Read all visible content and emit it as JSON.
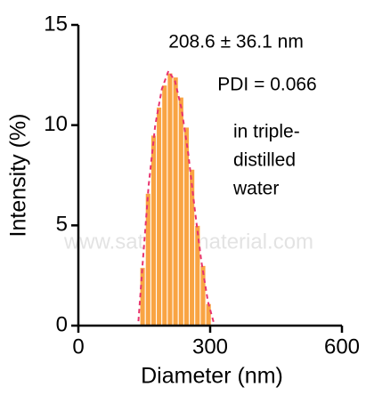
{
  "chart_data": {
    "type": "histogram",
    "xlabel": "Diameter (nm)",
    "ylabel": "Intensity (%)",
    "xlim": [
      0,
      600
    ],
    "xticks": [
      0,
      300,
      600
    ],
    "ylim": [
      0,
      15
    ],
    "yticks": [
      0,
      5,
      10,
      15
    ],
    "bins": [
      140,
      152.5,
      165,
      177.5,
      190,
      202.5,
      215,
      227.5,
      240,
      252.5,
      265,
      277.5,
      290,
      302.5
    ],
    "values": [
      2.9,
      6.6,
      9.5,
      10.9,
      12.0,
      12.6,
      12.4,
      11.4,
      9.9,
      7.8,
      5.0,
      3.0,
      1.1
    ],
    "color": "#f9a443",
    "fit": {
      "color": "#e8336e",
      "x": [
        0,
        136,
        146,
        160,
        175,
        190,
        205,
        220,
        235,
        250,
        265,
        280,
        295,
        310,
        500
      ],
      "y": [
        0,
        0,
        3,
        7,
        10,
        11.8,
        12.7,
        12.2,
        10.8,
        8.6,
        5.8,
        3.2,
        1.2,
        0,
        0
      ]
    },
    "annotations": [
      "208.6 ± 36.1 nm",
      "PDI = 0.066",
      "in triple-",
      "distilled",
      "water"
    ],
    "watermark": "www.satnanomaterial.com"
  }
}
